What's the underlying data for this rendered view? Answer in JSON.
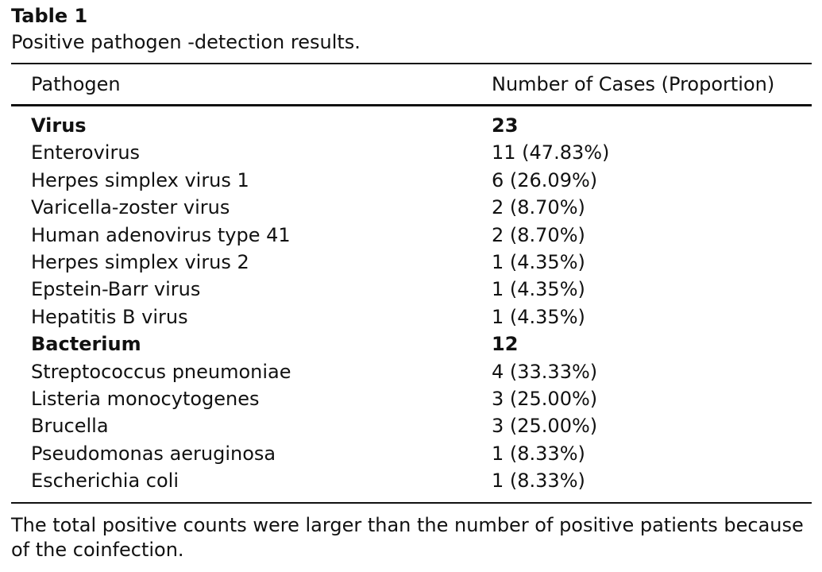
{
  "table": {
    "label": "Table 1",
    "caption": "Positive pathogen -detection results.",
    "headers": {
      "pathogen": "Pathogen",
      "cases": "Number of Cases (Proportion)"
    },
    "rows": [
      {
        "pathogen": "Virus",
        "cases": "23",
        "group": true
      },
      {
        "pathogen": "Enterovirus",
        "cases": "11 (47.83%)",
        "group": false
      },
      {
        "pathogen": "Herpes simplex virus 1",
        "cases": "6 (26.09%)",
        "group": false
      },
      {
        "pathogen": "Varicella-zoster virus",
        "cases": "2 (8.70%)",
        "group": false
      },
      {
        "pathogen": "Human adenovirus type 41",
        "cases": "2 (8.70%)",
        "group": false
      },
      {
        "pathogen": "Herpes simplex virus 2",
        "cases": "1 (4.35%)",
        "group": false
      },
      {
        "pathogen": "Epstein-Barr virus",
        "cases": "1 (4.35%)",
        "group": false
      },
      {
        "pathogen": "Hepatitis B virus",
        "cases": "1 (4.35%)",
        "group": false
      },
      {
        "pathogen": "Bacterium",
        "cases": "12",
        "group": true
      },
      {
        "pathogen": "Streptococcus pneumoniae",
        "cases": "4 (33.33%)",
        "group": false
      },
      {
        "pathogen": "Listeria monocytogenes",
        "cases": "3 (25.00%)",
        "group": false
      },
      {
        "pathogen": "Brucella",
        "cases": "3 (25.00%)",
        "group": false
      },
      {
        "pathogen": "Pseudomonas aeruginosa",
        "cases": "1 (8.33%)",
        "group": false
      },
      {
        "pathogen": "Escherichia coli",
        "cases": "1 (8.33%)",
        "group": false
      }
    ],
    "footnote": "The total positive counts were larger than the number of positive patients because of the coinfection."
  }
}
